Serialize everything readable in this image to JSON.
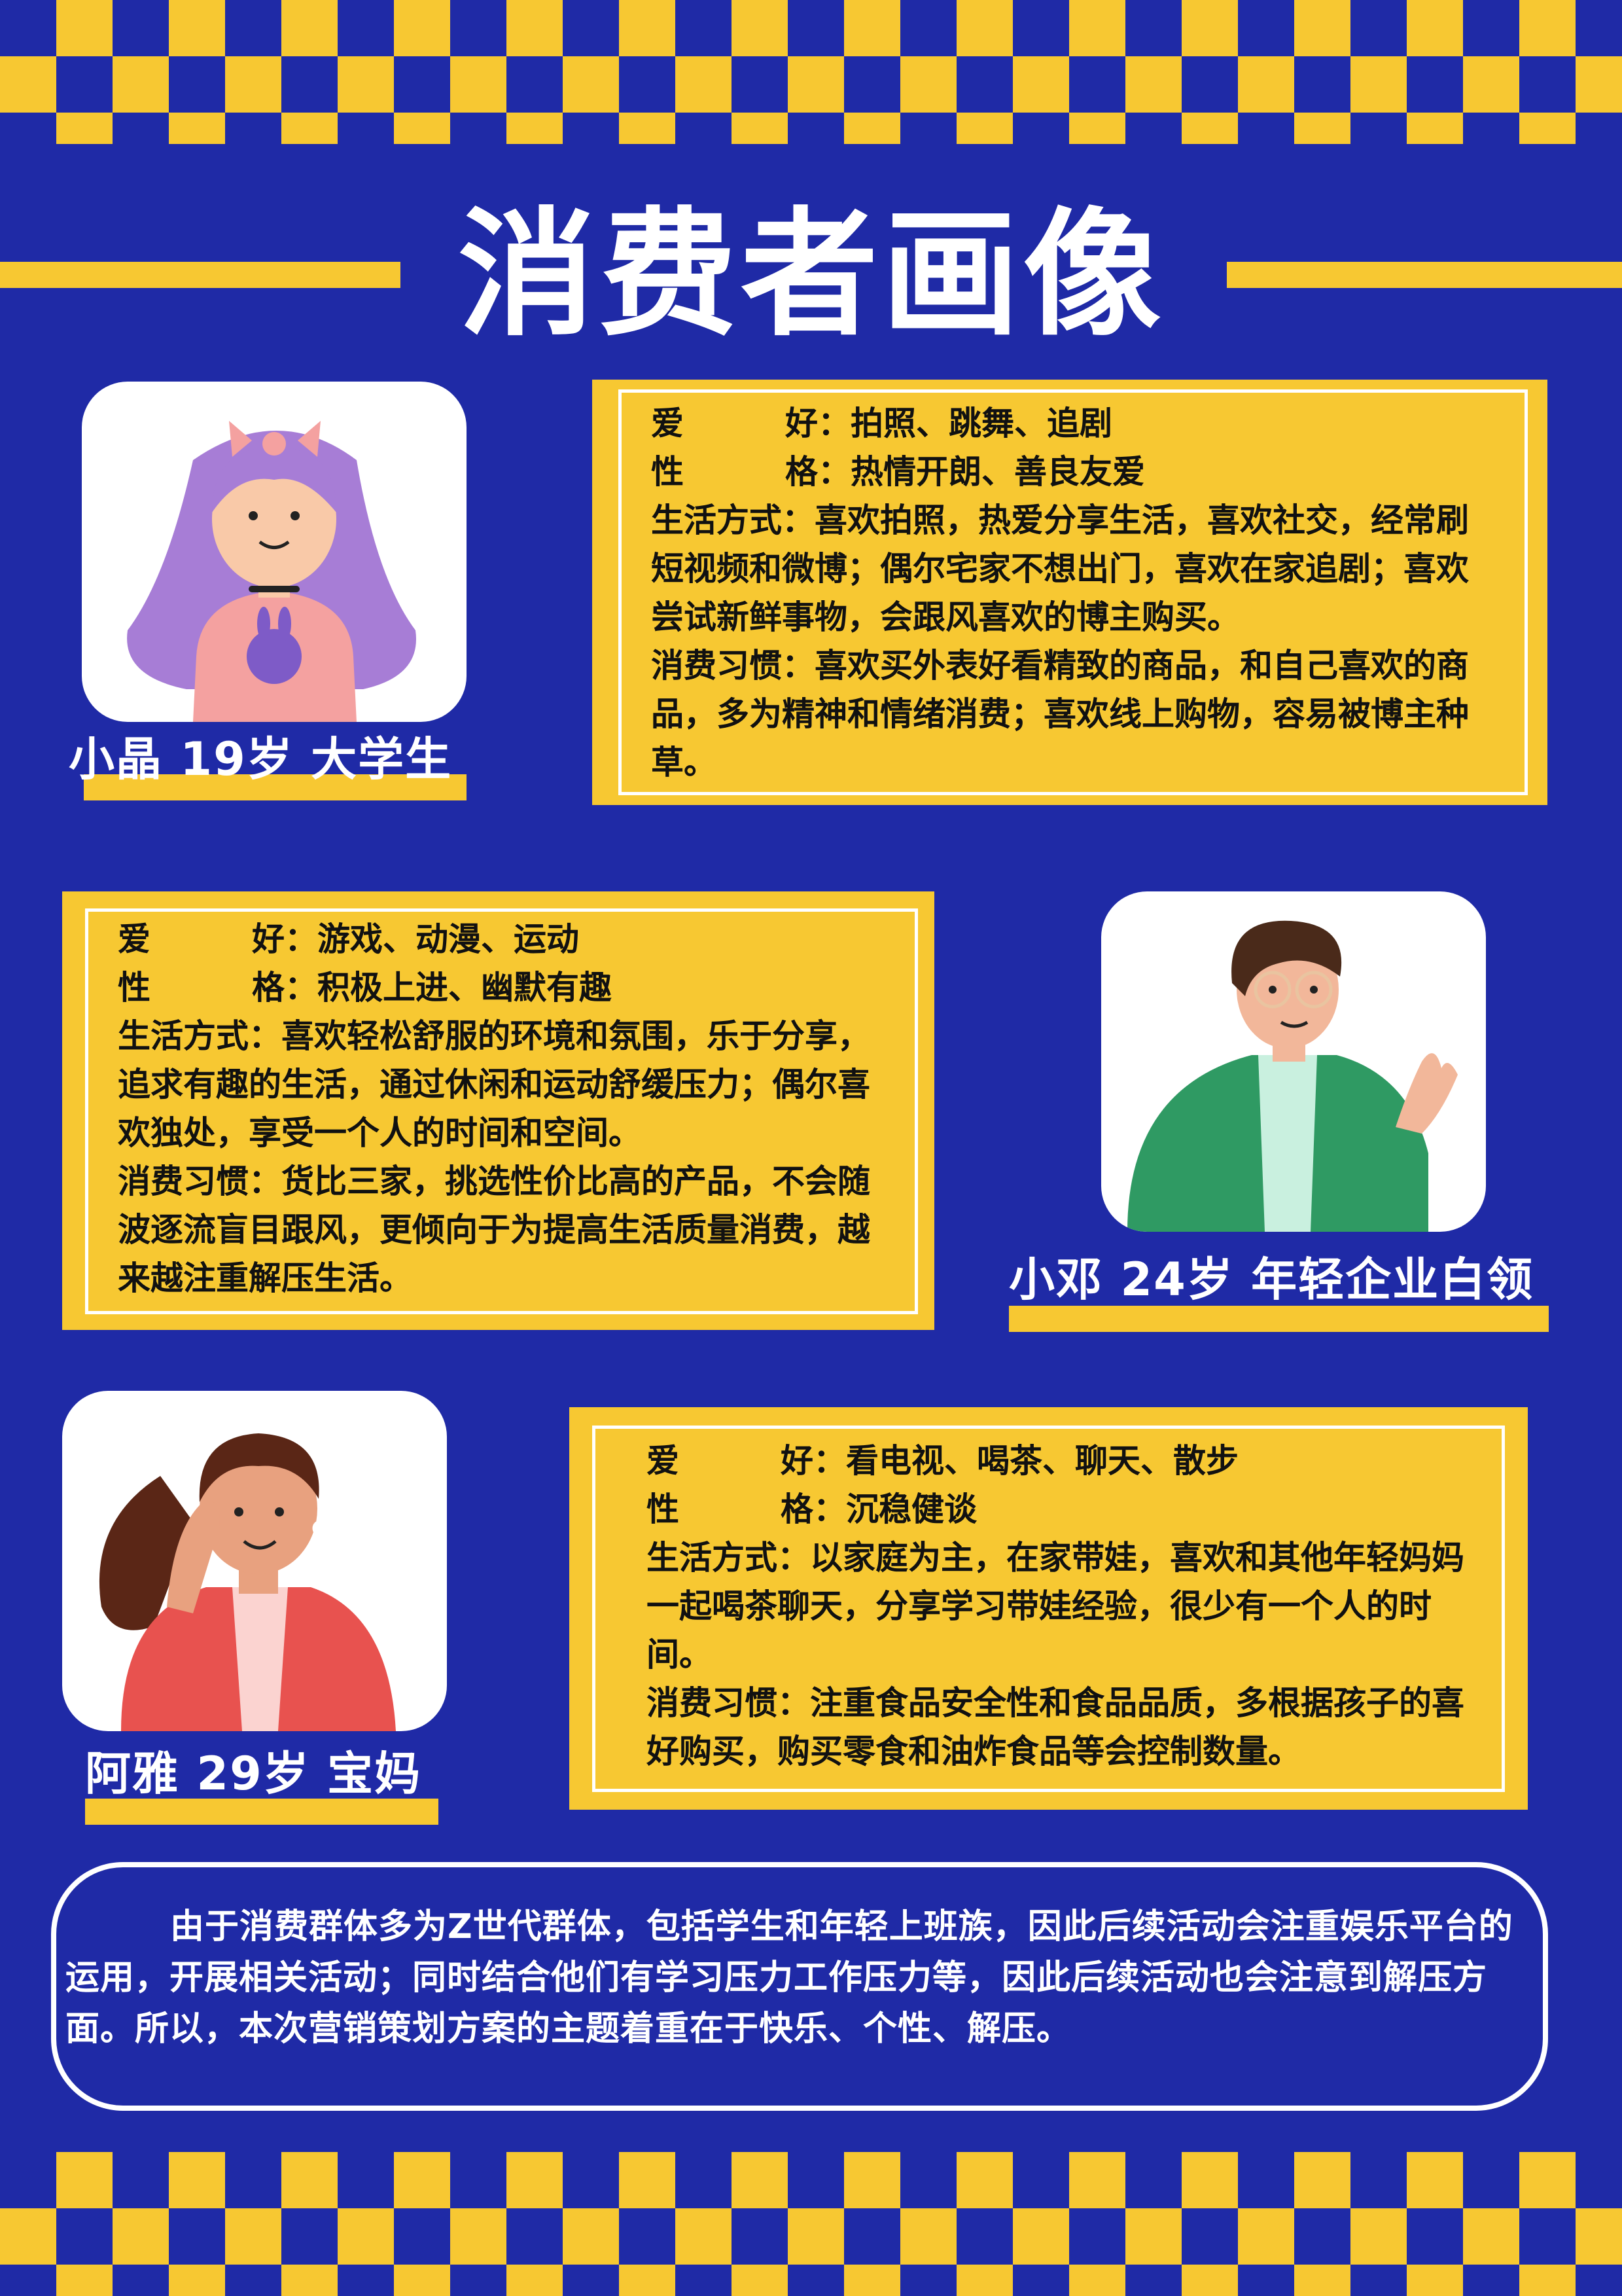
{
  "title": "消费者画像",
  "colors": {
    "background": "#1f2aa6",
    "accent": "#f7c832",
    "white": "#ffffff"
  },
  "labels": {
    "hobby_c1": "爱",
    "hobby_c2": "好",
    "personality_c1": "性",
    "personality_c2": "格",
    "lifestyle": "生活方式",
    "consumption": "消费习惯"
  },
  "personas": [
    {
      "name": "小晶 19岁 大学生",
      "avatar": "girl-purple-hair-icon",
      "hobby": "拍照、跳舞、追剧",
      "personality": "热情开朗、善良友爱",
      "lifestyle": "喜欢拍照，热爱分享生活，喜欢社交，经常刷短视频和微博；偶尔宅家不想出门，喜欢在家追剧；喜欢尝试新鲜事物，会跟风喜欢的博主购买。",
      "consumption": "喜欢买外表好看精致的商品，和自己喜欢的商品，多为精神和情绪消费；喜欢线上购物，容易被博主种草。"
    },
    {
      "name": "小邓 24岁 年轻企业白领",
      "avatar": "man-glasses-icon",
      "hobby": "游戏、动漫、运动",
      "personality": "积极上进、幽默有趣",
      "lifestyle": "喜欢轻松舒服的环境和氛围，乐于分享，追求有趣的生活，通过休闲和运动舒缓压力；偶尔喜欢独处，享受一个人的时间和空间。",
      "consumption": "货比三家，挑选性价比高的产品，不会随波逐流盲目跟风，更倾向于为提高生活质量消费，越来越注重解压生活。"
    },
    {
      "name": "阿雅 29岁 宝妈",
      "avatar": "woman-listening-icon",
      "hobby": "看电视、喝茶、聊天、散步",
      "personality": "沉稳健谈",
      "lifestyle": "以家庭为主，在家带娃，喜欢和其他年轻妈妈一起喝茶聊天，分享学习带娃经验，很少有一个人的时间。",
      "consumption": "注重食品安全性和食品品质，多根据孩子的喜好购买，购买零食和油炸食品等会控制数量。"
    }
  ],
  "summary": "由于消费群体多为Z世代群体，包括学生和年轻上班族，因此后续活动会注重娱乐平台的运用，开展相关活动；同时结合他们有学习压力工作压力等，因此后续活动也会注意到解压方面。所以，本次营销策划方案的主题着重在于快乐、个性、解压。"
}
